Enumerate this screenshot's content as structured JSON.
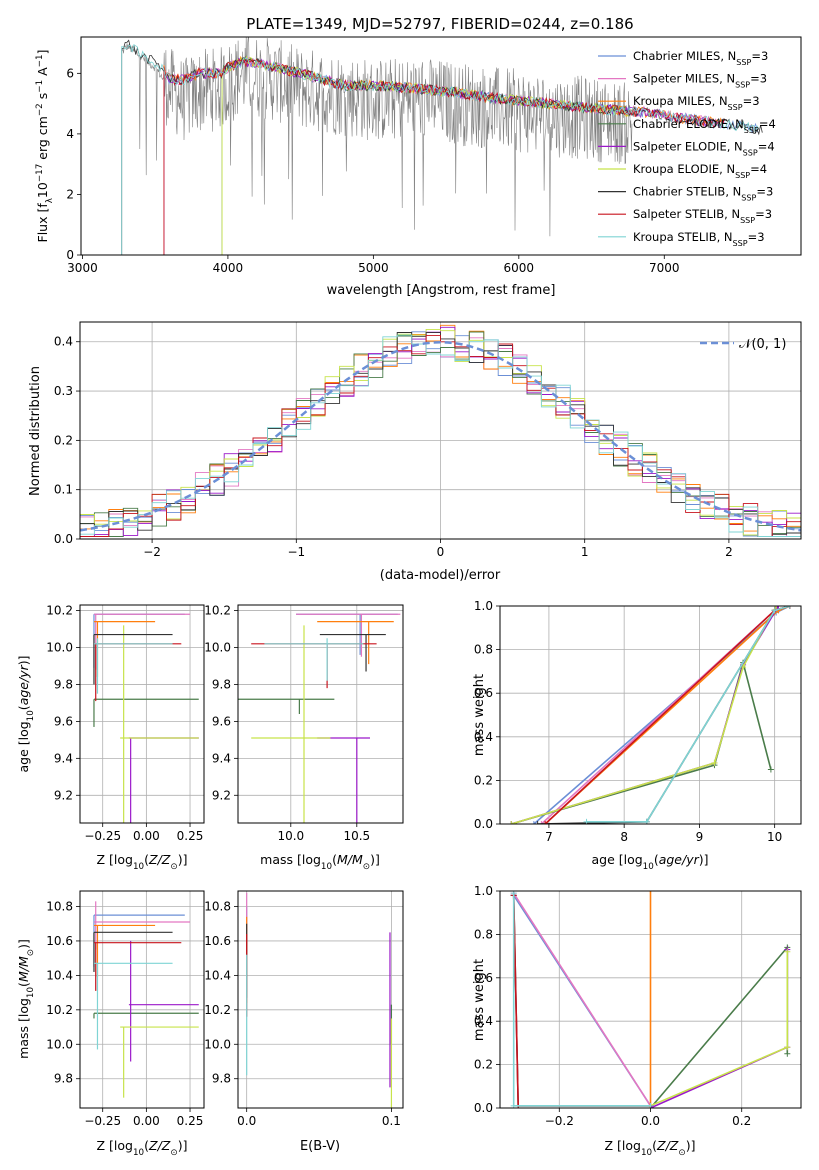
{
  "figure": {
    "title": "PLATE=1349, MJD=52797, FIBERID=0244, z=0.186"
  },
  "series_colors": [
    "#6b8fd6",
    "#e377c2",
    "#ff7f0e",
    "#4a7c4a",
    "#9b19c9",
    "#c7e34a",
    "#333333",
    "#c8141e",
    "#7fd4d4"
  ],
  "legend": {
    "labels": [
      {
        "base": "Chabrier MILES, N",
        "sub": "SSP",
        "tail": "=3"
      },
      {
        "base": "Salpeter MILES, N",
        "sub": "SSP",
        "tail": "=3"
      },
      {
        "base": "Kroupa MILES, N",
        "sub": "SSP",
        "tail": "=3"
      },
      {
        "base": "Chabrier ELODIE, N",
        "sub": "SSP",
        "tail": "=4"
      },
      {
        "base": "Salpeter ELODIE, N",
        "sub": "SSP",
        "tail": "=4"
      },
      {
        "base": "Kroupa ELODIE, N",
        "sub": "SSP",
        "tail": "=4"
      },
      {
        "base": "Chabrier STELIB, N",
        "sub": "SSP",
        "tail": "=3"
      },
      {
        "base": "Salpeter STELIB, N",
        "sub": "SSP",
        "tail": "=3"
      },
      {
        "base": "Kroupa STELIB, N",
        "sub": "SSP",
        "tail": "=3"
      }
    ],
    "normal_label": "𝒩(0, 1)"
  },
  "chart_data": [
    {
      "id": "spectrum",
      "type": "line",
      "xlabel": "wavelength [Angstrom, rest frame]",
      "ylabel": "Flux [f",
      "xlim": [
        2990,
        7940
      ],
      "ylim": [
        0,
        7.2
      ],
      "xticks": [
        3000,
        4000,
        5000,
        6000,
        7000
      ],
      "yticks": [
        0,
        2,
        4,
        6
      ],
      "data_color": "#808080",
      "data_range": [
        3270,
        6780
      ],
      "data_ctrl": [
        [
          3270,
          6.7
        ],
        [
          3310,
          6.9
        ],
        [
          3400,
          6.55
        ],
        [
          3500,
          6.2
        ],
        [
          3600,
          5.5
        ],
        [
          3700,
          5.1
        ],
        [
          3800,
          5.4
        ],
        [
          3950,
          5.5
        ],
        [
          4100,
          6.0
        ],
        [
          4300,
          5.8
        ],
        [
          4500,
          5.5
        ],
        [
          4800,
          5.3
        ],
        [
          5000,
          5.1
        ],
        [
          5300,
          5.2
        ],
        [
          5600,
          5.0
        ],
        [
          5900,
          4.8
        ],
        [
          6100,
          4.7
        ],
        [
          6300,
          4.6
        ],
        [
          6500,
          4.5
        ],
        [
          6780,
          4.3
        ]
      ],
      "model_ctrl": [
        [
          3270,
          6.8
        ],
        [
          3310,
          7.0
        ],
        [
          3400,
          6.6
        ],
        [
          3500,
          6.35
        ],
        [
          3560,
          6.1
        ],
        [
          3600,
          5.8
        ],
        [
          3700,
          5.8
        ],
        [
          3800,
          6.0
        ],
        [
          3950,
          6.0
        ],
        [
          4000,
          6.2
        ],
        [
          4100,
          6.4
        ],
        [
          4200,
          6.35
        ],
        [
          4500,
          6.0
        ],
        [
          4800,
          5.6
        ],
        [
          5000,
          5.6
        ],
        [
          5300,
          5.5
        ],
        [
          5500,
          5.4
        ],
        [
          5800,
          5.2
        ],
        [
          6100,
          5.05
        ],
        [
          6300,
          4.95
        ],
        [
          6600,
          4.8
        ],
        [
          6900,
          4.7
        ],
        [
          7000,
          4.6
        ],
        [
          7300,
          4.4
        ],
        [
          7600,
          4.2
        ],
        [
          7700,
          4.1
        ]
      ],
      "model_starts": [
        3560,
        3560,
        3560,
        3960,
        3560,
        3960,
        3270,
        3560,
        3270
      ],
      "model_ends": [
        7650,
        7420,
        7420,
        6760,
        7420,
        6760,
        7680,
        7420,
        7650
      ]
    },
    {
      "id": "residuals",
      "type": "line",
      "xlabel": "(data-model)/error",
      "ylabel": "Normed distribution",
      "xlim": [
        -2.5,
        2.5
      ],
      "ylim": [
        0,
        0.44
      ],
      "xticks": [
        -2,
        -1,
        0,
        1,
        2
      ],
      "yticks": [
        0.0,
        0.1,
        0.2,
        0.3,
        0.4
      ],
      "bin_width": 0.1
    },
    {
      "id": "age_vs_Z",
      "type": "scatter",
      "xlabel": "Z [log",
      "ylabel": "age  [log",
      "xlim": [
        -0.38,
        0.33
      ],
      "ylim": [
        9.05,
        10.23
      ],
      "xticks": [
        -0.25,
        0.0,
        0.25
      ],
      "xtick_labels": [
        "−0.25",
        "0.00",
        "0.25"
      ],
      "yticks": [
        9.2,
        9.4,
        9.6,
        9.8,
        10.0,
        10.2
      ]
    },
    {
      "id": "age_vs_mass",
      "type": "scatter",
      "xlabel": "mass [log",
      "ylabel": "",
      "xlim": [
        9.6,
        10.85
      ],
      "ylim": [
        9.05,
        10.23
      ],
      "xticks": [
        10.0,
        10.5
      ],
      "xtick_labels": [
        "10.0",
        "10.5"
      ],
      "yticks": [
        9.2,
        9.4,
        9.6,
        9.8,
        10.0,
        10.2
      ]
    },
    {
      "id": "weight_vs_age",
      "type": "line",
      "xlabel": "age  [log",
      "ylabel": "mass weight",
      "xlim": [
        6.35,
        10.35
      ],
      "ylim": [
        0,
        1.0
      ],
      "xticks": [
        7,
        8,
        9,
        10
      ],
      "yticks": [
        0.0,
        0.2,
        0.4,
        0.6,
        0.8,
        1.0
      ],
      "series": [
        {
          "color": "#6b8fd6",
          "points": [
            [
              6.8,
              0.0
            ],
            [
              10.02,
              0.97
            ],
            [
              10.2,
              1.0
            ]
          ]
        },
        {
          "color": "#e377c2",
          "points": [
            [
              6.9,
              0.0
            ],
            [
              10.0,
              0.98
            ],
            [
              10.2,
              1.0
            ]
          ]
        },
        {
          "color": "#ff7f0e",
          "points": [
            [
              6.95,
              0.0
            ],
            [
              10.05,
              0.98
            ],
            [
              10.2,
              1.0
            ]
          ]
        },
        {
          "color": "#4a7c4a",
          "points": [
            [
              6.5,
              0.0
            ],
            [
              9.2,
              0.27
            ],
            [
              9.58,
              0.74
            ],
            [
              9.95,
              0.25
            ]
          ]
        },
        {
          "color": "#9b19c9",
          "points": [
            [
              6.5,
              0.0
            ],
            [
              9.2,
              0.28
            ],
            [
              9.58,
              0.73
            ],
            [
              10.05,
              1.0
            ]
          ]
        },
        {
          "color": "#c7e34a",
          "points": [
            [
              6.5,
              0.0
            ],
            [
              9.2,
              0.28
            ],
            [
              9.58,
              0.72
            ],
            [
              10.02,
              1.0
            ]
          ]
        },
        {
          "color": "#333333",
          "points": [
            [
              6.85,
              0.0
            ],
            [
              8.3,
              0.01
            ],
            [
              10.0,
              0.98
            ],
            [
              10.2,
              1.0
            ]
          ]
        },
        {
          "color": "#c8141e",
          "points": [
            [
              6.95,
              0.0
            ],
            [
              10.0,
              0.98
            ],
            [
              10.2,
              1.0
            ]
          ]
        },
        {
          "color": "#7fd4d4",
          "points": [
            [
              7.5,
              0.01
            ],
            [
              8.3,
              0.01
            ],
            [
              10.0,
              0.98
            ],
            [
              10.2,
              1.0
            ]
          ]
        }
      ]
    },
    {
      "id": "mass_vs_Z",
      "type": "scatter",
      "xlabel": "Z [log",
      "ylabel": "mass [log",
      "xlim": [
        -0.38,
        0.33
      ],
      "ylim": [
        9.63,
        10.89
      ],
      "xticks": [
        -0.25,
        0.0,
        0.25
      ],
      "xtick_labels": [
        "−0.25",
        "0.00",
        "0.25"
      ],
      "yticks": [
        9.8,
        10.0,
        10.2,
        10.4,
        10.6,
        10.8
      ]
    },
    {
      "id": "mass_vs_EBV",
      "type": "scatter",
      "xlabel": "E(B-V)",
      "ylabel": "",
      "xlim": [
        -0.006,
        0.108
      ],
      "ylim": [
        9.63,
        10.89
      ],
      "xticks": [
        0.0,
        0.1
      ],
      "xtick_labels": [
        "0.0",
        "0.1"
      ],
      "yticks": [
        9.8,
        10.0,
        10.2,
        10.4,
        10.6,
        10.8
      ]
    },
    {
      "id": "weight_vs_Z",
      "type": "line",
      "xlabel": "Z [log",
      "ylabel": "mass weight",
      "xlim": [
        -0.33,
        0.33
      ],
      "ylim": [
        0,
        1.0
      ],
      "xticks": [
        -0.2,
        0.0,
        0.2
      ],
      "xtick_labels": [
        "−0.2",
        "0.0",
        "0.2"
      ],
      "yticks": [
        0.0,
        0.2,
        0.4,
        0.6,
        0.8,
        1.0
      ],
      "series": [
        {
          "color": "#6b8fd6",
          "points": [
            [
              -0.3,
              0.98
            ],
            [
              0.0,
              0.01
            ]
          ]
        },
        {
          "color": "#e377c2",
          "points": [
            [
              -0.3,
              0.99
            ],
            [
              0.0,
              0.01
            ]
          ]
        },
        {
          "color": "#ff7f0e",
          "points": [
            [
              0.0,
              0.0
            ],
            [
              0.0,
              1.0
            ]
          ]
        },
        {
          "color": "#4a7c4a",
          "points": [
            [
              0.0,
              0.0
            ],
            [
              0.3,
              0.74
            ],
            [
              0.3,
              0.25
            ]
          ]
        },
        {
          "color": "#9b19c9",
          "points": [
            [
              0.0,
              0.0
            ],
            [
              0.3,
              0.28
            ],
            [
              0.3,
              0.73
            ]
          ]
        },
        {
          "color": "#c7e34a",
          "points": [
            [
              0.0,
              0.01
            ],
            [
              0.3,
              0.28
            ],
            [
              0.3,
              0.72
            ]
          ]
        },
        {
          "color": "#333333",
          "points": [
            [
              -0.3,
              0.98
            ],
            [
              -0.29,
              0.01
            ],
            [
              0.0,
              0.01
            ]
          ]
        },
        {
          "color": "#c8141e",
          "points": [
            [
              -0.3,
              0.98
            ],
            [
              -0.29,
              0.01
            ],
            [
              0.0,
              0.01
            ]
          ]
        },
        {
          "color": "#7fd4d4",
          "points": [
            [
              -0.3,
              0.99
            ],
            [
              -0.3,
              0.01
            ],
            [
              0.0,
              0.01
            ]
          ]
        }
      ]
    }
  ],
  "ssp_values": [
    {
      "age": 10.18,
      "Z": [
        -0.3,
        0.22
      ],
      "mass": [
        10.04,
        10.81
      ],
      "age_range": [
        10.04,
        10.18
      ],
      "ebv": 0.0,
      "mass_val": 10.75,
      "mass_range": [
        10.45,
        10.75
      ]
    },
    {
      "age": 10.18,
      "Z": [
        -0.3,
        0.25
      ],
      "mass": [
        10.04,
        10.83
      ],
      "age_range": [
        10.03,
        10.18
      ],
      "ebv": 0.0,
      "mass_val": 10.71,
      "mass_range": [
        10.55,
        10.83
      ]
    },
    {
      "age": 10.14,
      "Z": [
        -0.3,
        0.05
      ],
      "mass": [
        10.2,
        10.78
      ],
      "age_range": [
        9.99,
        10.14
      ],
      "ebv": 0.0,
      "mass_val": 10.69,
      "mass_range": [
        10.39,
        10.69
      ]
    },
    {
      "age": 9.72,
      "Z": [
        -0.3,
        0.3
      ],
      "mass": [
        9.6,
        10.33
      ],
      "age_range": [
        9.72,
        9.72
      ],
      "ebv": 0.1,
      "mass_val": 10.18,
      "mass_range": [
        10.15,
        10.18
      ]
    },
    {
      "age": 9.51,
      "Z": [
        -0.1,
        0.3
      ],
      "mass": [
        10.2,
        10.6
      ],
      "age_range": [
        9.1,
        9.51
      ],
      "ebv": 0.099,
      "mass_val": 10.23,
      "mass_range": [
        9.9,
        10.6
      ]
    },
    {
      "age": 9.51,
      "Z": [
        -0.15,
        0.3
      ],
      "mass": [
        9.7,
        10.3
      ],
      "age_range": [
        9.12,
        10.12
      ],
      "ebv": 0.1,
      "mass_val": 10.1,
      "mass_range": [
        9.69,
        10.1
      ]
    },
    {
      "age": 10.07,
      "Z": [
        -0.3,
        0.15
      ],
      "mass": [
        10.22,
        10.72
      ],
      "age_range": [
        9.95,
        10.07
      ],
      "ebv": 0.0,
      "mass_val": 10.65,
      "mass_range": [
        10.42,
        10.65
      ]
    },
    {
      "age": 10.02,
      "Z": [
        -0.3,
        0.2
      ],
      "mass": [
        9.7,
        10.65
      ],
      "age_range": [
        9.86,
        10.02
      ],
      "ebv": 0.0,
      "mass_val": 10.59,
      "mass_range": [
        10.31,
        10.59
      ]
    },
    {
      "age": 10.02,
      "Z": [
        -0.3,
        0.15
      ],
      "mass": [
        9.8,
        10.55
      ],
      "age_range": [
        9.9,
        10.05
      ],
      "ebv": 0.0,
      "mass_val": 10.47,
      "mass_range": [
        9.97,
        10.47
      ]
    }
  ]
}
